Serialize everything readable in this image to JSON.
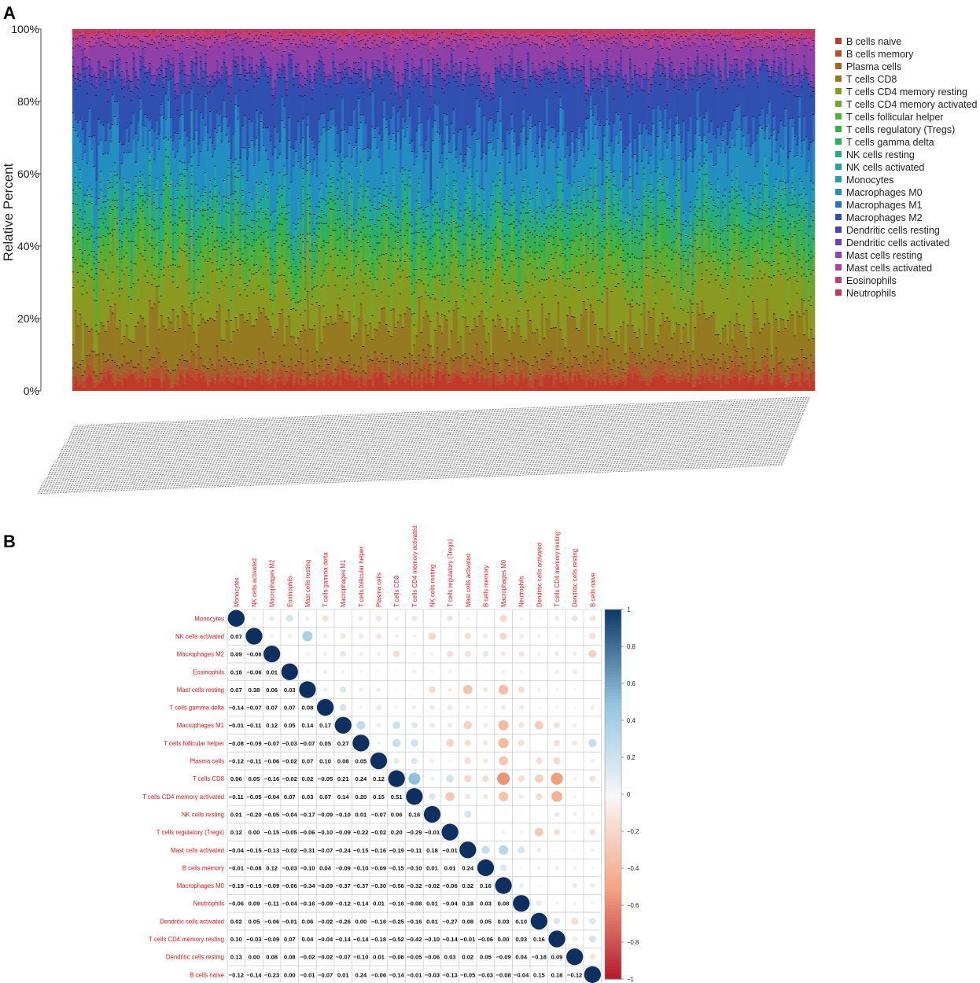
{
  "panels": {
    "a": "A",
    "b": "B"
  },
  "chart_data": [
    {
      "type": "bar",
      "subtype": "stacked-percent",
      "panel": "A",
      "ylabel": "Relative Percent",
      "y_ticks": [
        "0%",
        "20%",
        "40%",
        "60%",
        "80%",
        "100%"
      ],
      "ylim": [
        0,
        100
      ],
      "n_samples": 320,
      "legend_position": "right",
      "series": [
        {
          "name": "B cells naive",
          "color": "#c0392b",
          "mean_pct": 3
        },
        {
          "name": "B cells memory",
          "color": "#b4502c",
          "mean_pct": 2
        },
        {
          "name": "Plasma cells",
          "color": "#a0652a",
          "mean_pct": 3
        },
        {
          "name": "T cells CD8",
          "color": "#957a22",
          "mean_pct": 10
        },
        {
          "name": "T cells CD4 memory resting",
          "color": "#8a9a20",
          "mean_pct": 12
        },
        {
          "name": "T cells CD4 memory activated",
          "color": "#70a82a",
          "mean_pct": 4
        },
        {
          "name": "T cells follicular helper",
          "color": "#4fb03a",
          "mean_pct": 5
        },
        {
          "name": "T cells regulatory (Tregs)",
          "color": "#36b04e",
          "mean_pct": 4
        },
        {
          "name": "T cells gamma delta",
          "color": "#2ab065",
          "mean_pct": 2
        },
        {
          "name": "NK cells resting",
          "color": "#26ac82",
          "mean_pct": 4
        },
        {
          "name": "NK cells activated",
          "color": "#22a898",
          "mean_pct": 2
        },
        {
          "name": "Monocytes",
          "color": "#229fae",
          "mean_pct": 3
        },
        {
          "name": "Macrophages M0",
          "color": "#238fc0",
          "mean_pct": 12
        },
        {
          "name": "Macrophages M1",
          "color": "#2a70c0",
          "mean_pct": 6
        },
        {
          "name": "Macrophages M2",
          "color": "#2f50b0",
          "mean_pct": 12
        },
        {
          "name": "Dendritic cells resting",
          "color": "#4a42b0",
          "mean_pct": 2
        },
        {
          "name": "Dendritic cells activated",
          "color": "#7040b0",
          "mean_pct": 2
        },
        {
          "name": "Mast cells resting",
          "color": "#9040a8",
          "mean_pct": 6
        },
        {
          "name": "Mast cells activated",
          "color": "#b0409a",
          "mean_pct": 2
        },
        {
          "name": "Eosinophils",
          "color": "#c03c80",
          "mean_pct": 1
        },
        {
          "name": "Neutrophils",
          "color": "#c0385c",
          "mean_pct": 1
        }
      ]
    },
    {
      "type": "heatmap",
      "subtype": "correlation-circles",
      "panel": "B",
      "labels": [
        "Monocytes",
        "NK cells activated",
        "Macrophages M2",
        "Eosinophils",
        "Mast cells resting",
        "T cells gamma delta",
        "Macrophages M1",
        "T cells follicular helper",
        "Plasma cells",
        "T cells CD8",
        "T cells CD4 memory activated",
        "NK cells resting",
        "T cells regulatory (Tregs)",
        "Mast cells activated",
        "B cells memory",
        "Macrophages M0",
        "Neutrophils",
        "Dendritic cells activated",
        "T cells CD4 memory resting",
        "Dendritic cells resting",
        "B cells naive"
      ],
      "lower_triangle": [
        [],
        [
          "0.07"
        ],
        [
          "0.09",
          "−0.06"
        ],
        [
          "0.18",
          "−0.06",
          "0.01"
        ],
        [
          "0.07",
          "0.38",
          "0.06",
          "0.03"
        ],
        [
          "−0.14",
          "−0.07",
          "0.07",
          "0.07",
          "0.08"
        ],
        [
          "−0.01",
          "−0.11",
          "0.12",
          "0.05",
          "0.14",
          "0.17"
        ],
        [
          "−0.08",
          "−0.09",
          "−0.07",
          "−0.03",
          "−0.07",
          "0.05",
          "0.27"
        ],
        [
          "−0.12",
          "−0.11",
          "−0.06",
          "−0.02",
          "0.07",
          "0.10",
          "0.08",
          "0.05"
        ],
        [
          "0.06",
          "0.05",
          "−0.16",
          "−0.02",
          "0.02",
          "−0.05",
          "0.21",
          "0.24",
          "0.12"
        ],
        [
          "−0.11",
          "−0.05",
          "−0.04",
          "0.07",
          "0.03",
          "0.07",
          "0.14",
          "0.20",
          "0.15",
          "0.51"
        ],
        [
          "0.01",
          "−0.20",
          "−0.05",
          "−0.04",
          "−0.17",
          "−0.09",
          "−0.10",
          "0.01",
          "−0.07",
          "0.06",
          "0.16"
        ],
        [
          "0.12",
          "0.00",
          "−0.15",
          "−0.05",
          "−0.06",
          "−0.10",
          "−0.09",
          "−0.22",
          "−0.02",
          "0.20",
          "−0.29",
          "−0.01"
        ],
        [
          "−0.04",
          "−0.15",
          "−0.13",
          "−0.02",
          "−0.31",
          "−0.07",
          "−0.24",
          "−0.15",
          "−0.16",
          "−0.19",
          "−0.11",
          "0.18",
          "−0.01"
        ],
        [
          "−0.01",
          "−0.08",
          "0.12",
          "−0.03",
          "−0.10",
          "0.04",
          "−0.09",
          "−0.10",
          "−0.09",
          "−0.15",
          "−0.10",
          "0.01",
          "0.01",
          "0.24"
        ],
        [
          "−0.19",
          "−0.19",
          "−0.09",
          "−0.06",
          "−0.34",
          "−0.09",
          "−0.37",
          "−0.37",
          "−0.30",
          "−0.56",
          "−0.32",
          "−0.02",
          "−0.06",
          "0.32",
          "0.16"
        ],
        [
          "−0.06",
          "0.09",
          "−0.11",
          "−0.04",
          "−0.16",
          "−0.09",
          "−0.12",
          "−0.14",
          "0.01",
          "−0.16",
          "−0.08",
          "0.01",
          "−0.04",
          "0.18",
          "0.03",
          "0.08"
        ],
        [
          "0.02",
          "0.05",
          "−0.06",
          "−0.01",
          "0.06",
          "−0.02",
          "−0.26",
          "0.00",
          "−0.16",
          "−0.25",
          "−0.16",
          "0.01",
          "−0.27",
          "0.08",
          "0.05",
          "0.03",
          "0.10"
        ],
        [
          "0.10",
          "−0.03",
          "−0.09",
          "0.07",
          "0.04",
          "−0.04",
          "−0.14",
          "−0.14",
          "−0.18",
          "−0.52",
          "−0.42",
          "−0.10",
          "−0.14",
          "−0.01",
          "−0.06",
          "0.00",
          "0.03",
          "0.16"
        ],
        [
          "0.13",
          "0.00",
          "0.08",
          "0.08",
          "−0.02",
          "−0.02",
          "−0.07",
          "−0.10",
          "0.01",
          "−0.06",
          "−0.05",
          "−0.06",
          "0.03",
          "0.02",
          "0.05",
          "−0.09",
          "0.04",
          "−0.18",
          "0.09"
        ],
        [
          "−0.12",
          "−0.14",
          "−0.23",
          "0.00",
          "−0.01",
          "−0.07",
          "0.01",
          "0.24",
          "−0.06",
          "−0.14",
          "−0.01",
          "−0.03",
          "−0.13",
          "−0.05",
          "−0.03",
          "−0.08",
          "−0.04",
          "0.15",
          "0.18",
          "−0.12"
        ]
      ],
      "colorbar_ticks": [
        "1",
        "0.8",
        "0.6",
        "0.4",
        "0.2",
        "0",
        "−0.2",
        "−0.4",
        "−0.6",
        "−0.8",
        "−1"
      ],
      "color_positive": "#0d3b66",
      "color_negative": "#67001f"
    }
  ]
}
